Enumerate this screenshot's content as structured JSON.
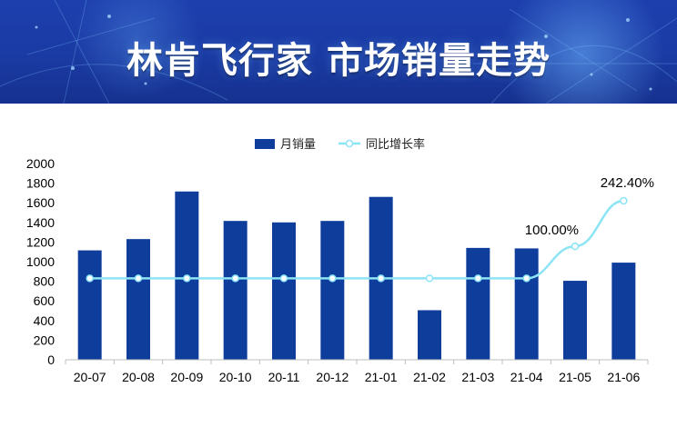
{
  "banner": {
    "title": "林肯飞行家 市场销量走势"
  },
  "colors": {
    "bar": "#0e3d9c",
    "line": "#8ce4f4",
    "marker_fill": "#ffffff",
    "axis": "#bfbfbf"
  },
  "chart_data": {
    "type": "bar",
    "categories": [
      "20-07",
      "20-08",
      "20-09",
      "20-10",
      "20-11",
      "20-12",
      "21-01",
      "21-02",
      "21-03",
      "21-04",
      "21-05",
      "21-06"
    ],
    "series": [
      {
        "name": "月销量",
        "type": "bar",
        "values": [
          1115,
          1230,
          1715,
          1415,
          1400,
          1415,
          1660,
          505,
          1140,
          1135,
          805,
          990
        ]
      },
      {
        "name": "同比增长率",
        "type": "line",
        "unit": "%",
        "values": [
          null,
          null,
          null,
          null,
          null,
          null,
          null,
          null,
          null,
          null,
          100.0,
          242.4
        ],
        "data_labels": [
          "",
          "",
          "",
          "",
          "",
          "",
          "",
          "",
          "",
          "",
          "100.00%",
          "242.40%"
        ]
      }
    ],
    "y_ticks": [
      "0",
      "200",
      "400",
      "600",
      "800",
      "1000",
      "1200",
      "1400",
      "1600",
      "1800",
      "2000"
    ],
    "ylim": [
      0,
      2000
    ],
    "legend_position": "top-center",
    "grid": false
  }
}
